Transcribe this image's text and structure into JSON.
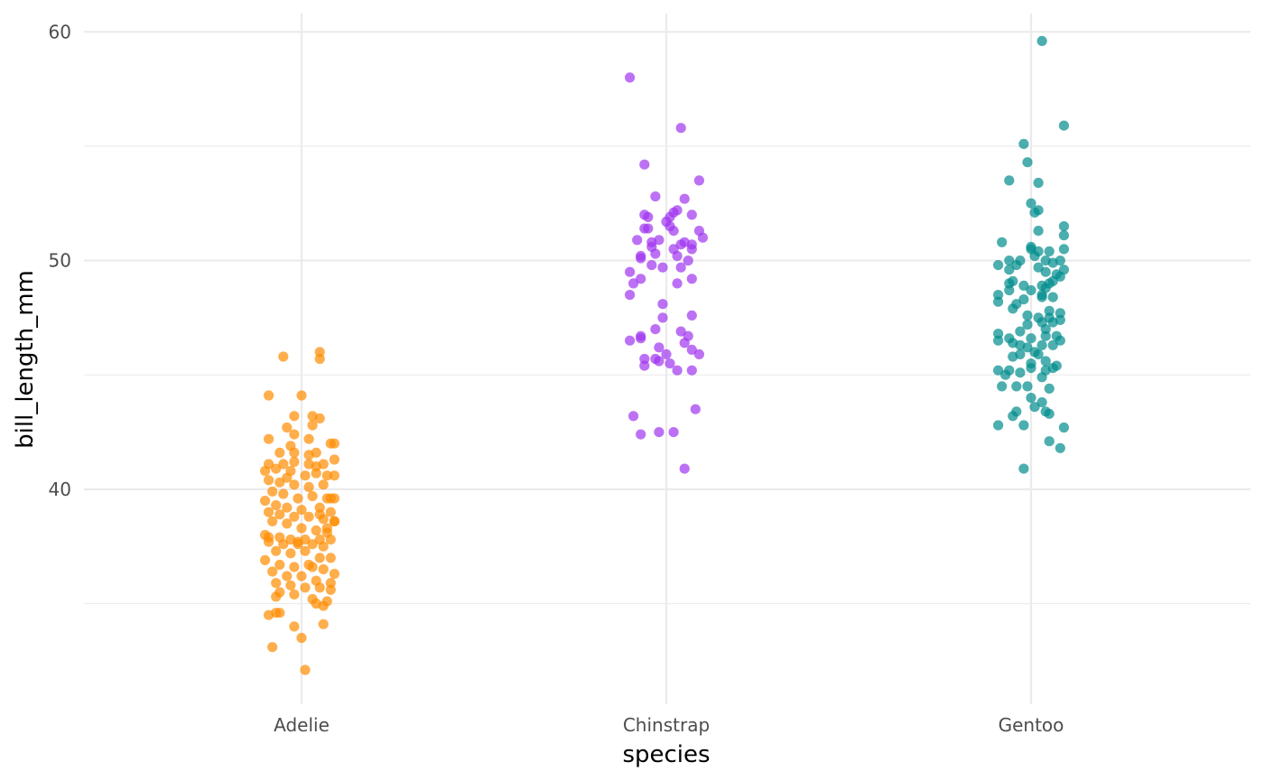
{
  "chart_data": {
    "type": "scatter",
    "xlabel": "species",
    "ylabel": "bill_length_mm",
    "categories": [
      "Adelie",
      "Chinstrap",
      "Gentoo"
    ],
    "ylim": [
      30.6,
      60.8
    ],
    "y_ticks": [
      40,
      50,
      60
    ],
    "y_minor_ticks": [
      35,
      45,
      55
    ],
    "grid": true,
    "legend": "none",
    "point_opacity": 0.7,
    "series": [
      {
        "category": "Adelie",
        "color": "#ff8c00",
        "points": [
          [
            -0.05,
            45.8
          ],
          [
            0.05,
            46.0
          ],
          [
            0.05,
            45.7
          ],
          [
            -0.09,
            44.1
          ],
          [
            0.0,
            44.1
          ],
          [
            -0.09,
            42.2
          ],
          [
            -0.02,
            43.2
          ],
          [
            0.03,
            43.2
          ],
          [
            0.05,
            43.1
          ],
          [
            -0.04,
            42.7
          ],
          [
            0.03,
            42.8
          ],
          [
            -0.02,
            42.4
          ],
          [
            0.02,
            42.2
          ],
          [
            -0.03,
            41.9
          ],
          [
            0.08,
            42.0
          ],
          [
            0.09,
            42.0
          ],
          [
            -0.06,
            41.6
          ],
          [
            -0.02,
            41.6
          ],
          [
            0.04,
            41.6
          ],
          [
            -0.09,
            41.1
          ],
          [
            -0.05,
            41.1
          ],
          [
            -0.02,
            41.2
          ],
          [
            0.02,
            41.1
          ],
          [
            0.06,
            41.1
          ],
          [
            0.09,
            41.3
          ],
          [
            -0.1,
            40.8
          ],
          [
            -0.07,
            40.9
          ],
          [
            -0.03,
            40.8
          ],
          [
            0.01,
            40.6
          ],
          [
            0.04,
            40.7
          ],
          [
            0.07,
            40.6
          ],
          [
            0.09,
            40.6
          ],
          [
            -0.09,
            40.4
          ],
          [
            -0.06,
            40.3
          ],
          [
            -0.02,
            40.2
          ],
          [
            0.02,
            40.1
          ],
          [
            0.06,
            40.2
          ],
          [
            -0.08,
            39.9
          ],
          [
            -0.05,
            39.8
          ],
          [
            -0.01,
            39.6
          ],
          [
            0.03,
            39.7
          ],
          [
            0.07,
            39.6
          ],
          [
            0.09,
            39.6
          ],
          [
            -0.1,
            39.5
          ],
          [
            -0.07,
            39.3
          ],
          [
            -0.04,
            39.2
          ],
          [
            0.0,
            39.1
          ],
          [
            0.05,
            39.2
          ],
          [
            0.08,
            39.0
          ],
          [
            -0.09,
            39.0
          ],
          [
            -0.06,
            38.9
          ],
          [
            -0.02,
            38.8
          ],
          [
            0.02,
            38.8
          ],
          [
            0.06,
            38.7
          ],
          [
            0.09,
            38.6
          ],
          [
            -0.08,
            38.6
          ],
          [
            -0.04,
            38.5
          ],
          [
            0.0,
            38.3
          ],
          [
            0.04,
            38.2
          ],
          [
            0.07,
            38.1
          ],
          [
            -0.1,
            38.0
          ],
          [
            -0.06,
            37.9
          ],
          [
            -0.03,
            37.8
          ],
          [
            0.01,
            37.8
          ],
          [
            0.05,
            37.8
          ],
          [
            0.08,
            37.8
          ],
          [
            -0.09,
            37.7
          ],
          [
            -0.05,
            37.6
          ],
          [
            -0.01,
            37.6
          ],
          [
            0.03,
            37.6
          ],
          [
            0.06,
            37.5
          ],
          [
            -0.07,
            37.3
          ],
          [
            -0.03,
            37.2
          ],
          [
            0.01,
            37.3
          ],
          [
            0.05,
            37.0
          ],
          [
            0.08,
            37.0
          ],
          [
            -0.1,
            36.9
          ],
          [
            -0.06,
            36.7
          ],
          [
            -0.02,
            36.6
          ],
          [
            0.02,
            36.7
          ],
          [
            0.06,
            36.5
          ],
          [
            0.09,
            36.3
          ],
          [
            -0.08,
            36.4
          ],
          [
            -0.04,
            36.2
          ],
          [
            0.0,
            36.2
          ],
          [
            0.04,
            36.0
          ],
          [
            0.08,
            35.9
          ],
          [
            -0.07,
            35.9
          ],
          [
            -0.03,
            35.8
          ],
          [
            0.01,
            35.7
          ],
          [
            0.05,
            35.7
          ],
          [
            0.08,
            35.6
          ],
          [
            -0.06,
            35.5
          ],
          [
            -0.02,
            35.4
          ],
          [
            0.03,
            35.2
          ],
          [
            0.07,
            35.1
          ],
          [
            -0.07,
            35.3
          ],
          [
            0.04,
            35.0
          ],
          [
            0.06,
            34.9
          ],
          [
            -0.09,
            34.5
          ],
          [
            -0.07,
            34.6
          ],
          [
            -0.06,
            34.6
          ],
          [
            -0.02,
            34.0
          ],
          [
            0.06,
            34.1
          ],
          [
            -0.08,
            33.1
          ],
          [
            0.0,
            33.5
          ],
          [
            0.01,
            32.1
          ],
          [
            0.09,
            38.6
          ],
          [
            0.08,
            39.6
          ],
          [
            -0.04,
            40.5
          ],
          [
            0.04,
            41.0
          ],
          [
            0.02,
            41.5
          ],
          [
            0.07,
            38.3
          ],
          [
            -0.09,
            37.9
          ],
          [
            0.03,
            36.6
          ],
          [
            -0.01,
            37.7
          ],
          [
            0.05,
            38.9
          ]
        ]
      },
      {
        "category": "Chinstrap",
        "color": "#a034f0",
        "points": [
          [
            -0.1,
            58.0
          ],
          [
            0.04,
            55.8
          ],
          [
            -0.06,
            54.2
          ],
          [
            0.09,
            53.5
          ],
          [
            -0.03,
            52.8
          ],
          [
            0.05,
            52.7
          ],
          [
            0.03,
            52.2
          ],
          [
            0.01,
            51.9
          ],
          [
            -0.06,
            52.0
          ],
          [
            0.07,
            52.0
          ],
          [
            0.02,
            52.1
          ],
          [
            -0.05,
            51.9
          ],
          [
            0.0,
            51.7
          ],
          [
            -0.06,
            51.4
          ],
          [
            -0.05,
            51.4
          ],
          [
            0.02,
            51.3
          ],
          [
            0.01,
            51.5
          ],
          [
            0.09,
            51.3
          ],
          [
            -0.08,
            50.9
          ],
          [
            -0.04,
            50.8
          ],
          [
            -0.02,
            50.9
          ],
          [
            0.05,
            50.8
          ],
          [
            0.07,
            50.7
          ],
          [
            0.1,
            51.0
          ],
          [
            0.04,
            50.7
          ],
          [
            -0.04,
            50.6
          ],
          [
            0.07,
            50.5
          ],
          [
            -0.03,
            50.3
          ],
          [
            0.02,
            50.5
          ],
          [
            -0.07,
            50.2
          ],
          [
            -0.07,
            50.1
          ],
          [
            0.03,
            50.2
          ],
          [
            0.06,
            50.0
          ],
          [
            -0.04,
            49.8
          ],
          [
            -0.01,
            49.7
          ],
          [
            0.04,
            49.7
          ],
          [
            -0.1,
            49.5
          ],
          [
            -0.07,
            49.2
          ],
          [
            0.07,
            49.2
          ],
          [
            -0.09,
            49.0
          ],
          [
            0.03,
            49.0
          ],
          [
            -0.1,
            48.5
          ],
          [
            -0.01,
            48.1
          ],
          [
            0.07,
            47.6
          ],
          [
            -0.01,
            47.5
          ],
          [
            -0.03,
            47.0
          ],
          [
            0.04,
            46.9
          ],
          [
            0.06,
            46.7
          ],
          [
            -0.07,
            46.7
          ],
          [
            -0.07,
            46.6
          ],
          [
            -0.1,
            46.5
          ],
          [
            0.05,
            46.4
          ],
          [
            -0.02,
            46.2
          ],
          [
            0.07,
            46.1
          ],
          [
            0.0,
            45.9
          ],
          [
            0.09,
            45.9
          ],
          [
            -0.06,
            45.7
          ],
          [
            -0.03,
            45.7
          ],
          [
            -0.02,
            45.6
          ],
          [
            0.01,
            45.5
          ],
          [
            -0.06,
            45.4
          ],
          [
            0.03,
            45.2
          ],
          [
            0.07,
            45.2
          ],
          [
            -0.09,
            43.2
          ],
          [
            0.08,
            43.5
          ],
          [
            -0.02,
            42.5
          ],
          [
            -0.07,
            42.4
          ],
          [
            0.02,
            42.5
          ],
          [
            0.05,
            40.9
          ]
        ]
      },
      {
        "category": "Gentoo",
        "color": "#008b8b",
        "points": [
          [
            0.03,
            59.6
          ],
          [
            0.09,
            55.9
          ],
          [
            -0.02,
            55.1
          ],
          [
            -0.01,
            54.3
          ],
          [
            0.02,
            53.4
          ],
          [
            -0.06,
            53.5
          ],
          [
            0.0,
            52.5
          ],
          [
            0.02,
            52.2
          ],
          [
            0.01,
            52.1
          ],
          [
            0.09,
            51.5
          ],
          [
            0.09,
            51.1
          ],
          [
            0.02,
            51.3
          ],
          [
            0.09,
            50.5
          ],
          [
            -0.08,
            50.8
          ],
          [
            0.0,
            50.6
          ],
          [
            0.0,
            50.5
          ],
          [
            0.02,
            50.4
          ],
          [
            0.05,
            50.4
          ],
          [
            -0.03,
            50.0
          ],
          [
            0.01,
            50.2
          ],
          [
            0.04,
            50.0
          ],
          [
            0.08,
            50.0
          ],
          [
            -0.06,
            50.0
          ],
          [
            -0.09,
            49.8
          ],
          [
            -0.04,
            49.8
          ],
          [
            -0.06,
            49.6
          ],
          [
            0.02,
            49.7
          ],
          [
            0.04,
            49.5
          ],
          [
            0.09,
            49.6
          ],
          [
            0.07,
            49.4
          ],
          [
            0.08,
            49.3
          ],
          [
            0.05,
            49.0
          ],
          [
            0.06,
            49.1
          ],
          [
            -0.05,
            49.1
          ],
          [
            -0.06,
            49.0
          ],
          [
            -0.06,
            48.7
          ],
          [
            0.0,
            48.7
          ],
          [
            0.04,
            48.8
          ],
          [
            0.03,
            48.5
          ],
          [
            -0.09,
            48.5
          ],
          [
            -0.02,
            48.3
          ],
          [
            -0.09,
            48.2
          ],
          [
            0.03,
            48.4
          ],
          [
            0.06,
            48.4
          ],
          [
            -0.04,
            48.1
          ],
          [
            -0.01,
            47.6
          ],
          [
            0.08,
            47.7
          ],
          [
            0.05,
            47.5
          ],
          [
            0.02,
            47.5
          ],
          [
            -0.01,
            47.2
          ],
          [
            0.03,
            47.3
          ],
          [
            0.04,
            47.0
          ],
          [
            0.06,
            47.3
          ],
          [
            0.08,
            47.4
          ],
          [
            -0.09,
            46.8
          ],
          [
            -0.06,
            46.6
          ],
          [
            -0.03,
            46.9
          ],
          [
            0.0,
            46.6
          ],
          [
            0.04,
            46.7
          ],
          [
            0.07,
            46.7
          ],
          [
            -0.09,
            46.5
          ],
          [
            -0.05,
            46.4
          ],
          [
            -0.03,
            46.3
          ],
          [
            -0.01,
            46.2
          ],
          [
            0.03,
            46.3
          ],
          [
            0.06,
            46.3
          ],
          [
            0.08,
            46.5
          ],
          [
            -0.05,
            45.8
          ],
          [
            -0.03,
            45.9
          ],
          [
            0.0,
            45.5
          ],
          [
            0.02,
            45.9
          ],
          [
            0.04,
            45.6
          ],
          [
            0.07,
            45.4
          ],
          [
            -0.09,
            45.2
          ],
          [
            -0.06,
            45.2
          ],
          [
            -0.03,
            45.1
          ],
          [
            0.0,
            45.3
          ],
          [
            0.04,
            45.2
          ],
          [
            0.06,
            45.3
          ],
          [
            -0.08,
            44.5
          ],
          [
            -0.04,
            44.5
          ],
          [
            -0.01,
            44.5
          ],
          [
            0.03,
            44.9
          ],
          [
            0.05,
            44.4
          ],
          [
            0.0,
            44.0
          ],
          [
            0.01,
            43.6
          ],
          [
            0.03,
            43.8
          ],
          [
            0.04,
            43.4
          ],
          [
            -0.04,
            43.4
          ],
          [
            -0.05,
            43.2
          ],
          [
            0.05,
            43.3
          ],
          [
            -0.09,
            42.8
          ],
          [
            -0.02,
            42.8
          ],
          [
            0.09,
            42.7
          ],
          [
            0.05,
            42.1
          ],
          [
            0.08,
            41.8
          ],
          [
            -0.02,
            40.9
          ],
          [
            0.03,
            48.9
          ],
          [
            -0.02,
            48.9
          ],
          [
            0.06,
            49.9
          ],
          [
            -0.05,
            47.9
          ],
          [
            0.01,
            46.0
          ],
          [
            0.05,
            47.8
          ],
          [
            -0.07,
            45.0
          ]
        ]
      }
    ]
  }
}
